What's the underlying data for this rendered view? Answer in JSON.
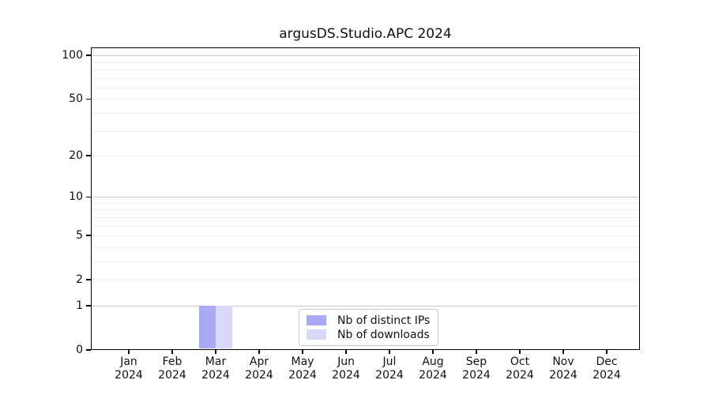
{
  "chart_data": {
    "type": "bar",
    "title": "argusDS.Studio.APC 2024",
    "categories": [
      "Jan 2024",
      "Feb 2024",
      "Mar 2024",
      "Apr 2024",
      "May 2024",
      "Jun 2024",
      "Jul 2024",
      "Aug 2024",
      "Sep 2024",
      "Oct 2024",
      "Nov 2024",
      "Dec 2024"
    ],
    "series": [
      {
        "name": "Nb of distinct IPs",
        "color": "#a9a9f6",
        "values": [
          0,
          0,
          1,
          0,
          0,
          0,
          0,
          0,
          0,
          0,
          0,
          0
        ]
      },
      {
        "name": "Nb of downloads",
        "color": "#d8d8f8",
        "values": [
          0,
          0,
          1,
          0,
          0,
          0,
          0,
          0,
          0,
          0,
          0,
          0
        ]
      }
    ],
    "xlabel": "",
    "ylabel": "",
    "yscale": "log1p",
    "ylim": [
      0,
      113
    ],
    "y_major_ticks": [
      0,
      1,
      2,
      5,
      10,
      20,
      50,
      100
    ],
    "y_minor_ticks": [
      3,
      4,
      6,
      7,
      8,
      9,
      30,
      40,
      60,
      70,
      80,
      90
    ],
    "grid": "horizontal",
    "legend_position": "lower-center-inside"
  },
  "colors": {
    "axis": "#000000",
    "grid_decade": "#c7c7c7",
    "grid_minor": "#ededed",
    "background": "#ffffff",
    "legend_border": "#cccccc"
  }
}
